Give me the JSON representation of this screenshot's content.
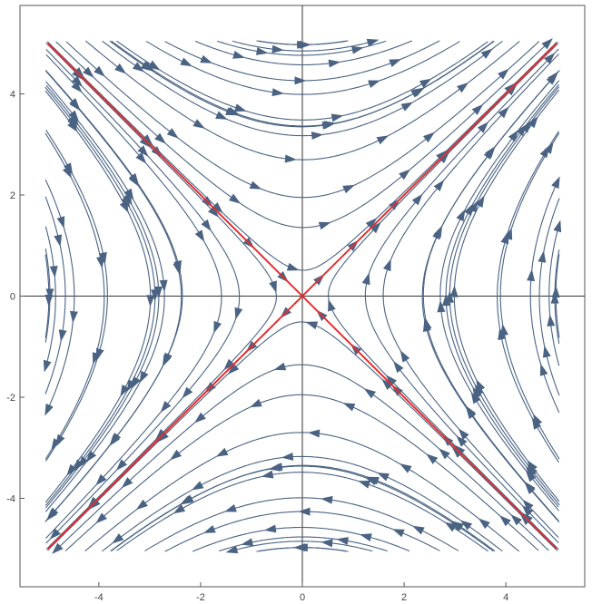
{
  "chart_data": {
    "type": "stream",
    "title": "",
    "xlabel": "",
    "ylabel": "",
    "xlim": [
      -5.55,
      5.55
    ],
    "ylim": [
      -5.75,
      5.75
    ],
    "x_ticks": [
      -4,
      -2,
      0,
      2,
      4
    ],
    "y_ticks": [
      -4,
      -2,
      0,
      2,
      4
    ],
    "x_tick_labels": [
      "-4",
      "-2",
      "0",
      "2",
      "4"
    ],
    "y_tick_labels": [
      "-4",
      "-2",
      "0",
      "2",
      "4"
    ],
    "grid": false,
    "frame": true,
    "field": {
      "dx": "y",
      "dy": "x"
    },
    "stream_color": "#4a6383",
    "seeds": [
      [
        -5,
        4
      ],
      [
        -5,
        2.2
      ],
      [
        -5,
        1.2
      ],
      [
        -5,
        0.4
      ],
      [
        -5,
        -0.6
      ],
      [
        -5,
        -1.8
      ],
      [
        -5,
        -3.2
      ],
      [
        -5,
        -4.4
      ],
      [
        5,
        -4
      ],
      [
        5,
        -2.2
      ],
      [
        5,
        -1.2
      ],
      [
        5,
        -0.4
      ],
      [
        5,
        0.6
      ],
      [
        5,
        1.8
      ],
      [
        5,
        3.2
      ],
      [
        5,
        4.4
      ],
      [
        -4.2,
        5
      ],
      [
        -3,
        5
      ],
      [
        -2,
        5
      ],
      [
        -1.2,
        5
      ],
      [
        -0.5,
        5
      ],
      [
        0.5,
        5
      ],
      [
        1.5,
        5
      ],
      [
        2.6,
        5
      ],
      [
        3.7,
        5
      ],
      [
        4.2,
        -5
      ],
      [
        3,
        -5
      ],
      [
        2,
        -5
      ],
      [
        1.2,
        -5
      ],
      [
        0.5,
        -5
      ],
      [
        -0.5,
        -5
      ],
      [
        -1.5,
        -5
      ],
      [
        -2.6,
        -5
      ],
      [
        -3.7,
        -5
      ],
      [
        -0.6,
        0.3
      ],
      [
        0.6,
        -0.3
      ],
      [
        -0.3,
        0.6
      ],
      [
        0.3,
        -0.6
      ],
      [
        -1.6,
        1.0
      ],
      [
        1.6,
        -1.0
      ],
      [
        -3,
        3.3
      ],
      [
        3,
        -3.3
      ],
      [
        -2,
        1.2
      ],
      [
        2,
        -1.2
      ],
      [
        -3.5,
        2.2
      ],
      [
        3.5,
        -2.2
      ],
      [
        -1.0,
        2.2
      ],
      [
        1.0,
        -2.2
      ],
      [
        -0.4,
        3.2
      ],
      [
        0.4,
        -3.2
      ],
      [
        -2.5,
        4.2
      ],
      [
        2.5,
        -4.2
      ],
      [
        -4.4,
        3.3
      ],
      [
        4.4,
        -3.3
      ],
      [
        -3,
        1.0
      ],
      [
        3,
        -1.0
      ],
      [
        -2.4,
        0.3
      ],
      [
        2.4,
        -0.3
      ],
      [
        -1.5,
        3.8
      ],
      [
        1.5,
        -3.8
      ],
      [
        -4.0,
        0.9
      ],
      [
        4.0,
        -0.9
      ]
    ],
    "separatrices": {
      "color": "#e03030",
      "lines": [
        {
          "from": [
            -5,
            -5
          ],
          "to": [
            5,
            5
          ],
          "direction": "outward"
        },
        {
          "from": [
            -5,
            5
          ],
          "to": [
            5,
            -5
          ],
          "direction": "inward"
        }
      ]
    }
  }
}
